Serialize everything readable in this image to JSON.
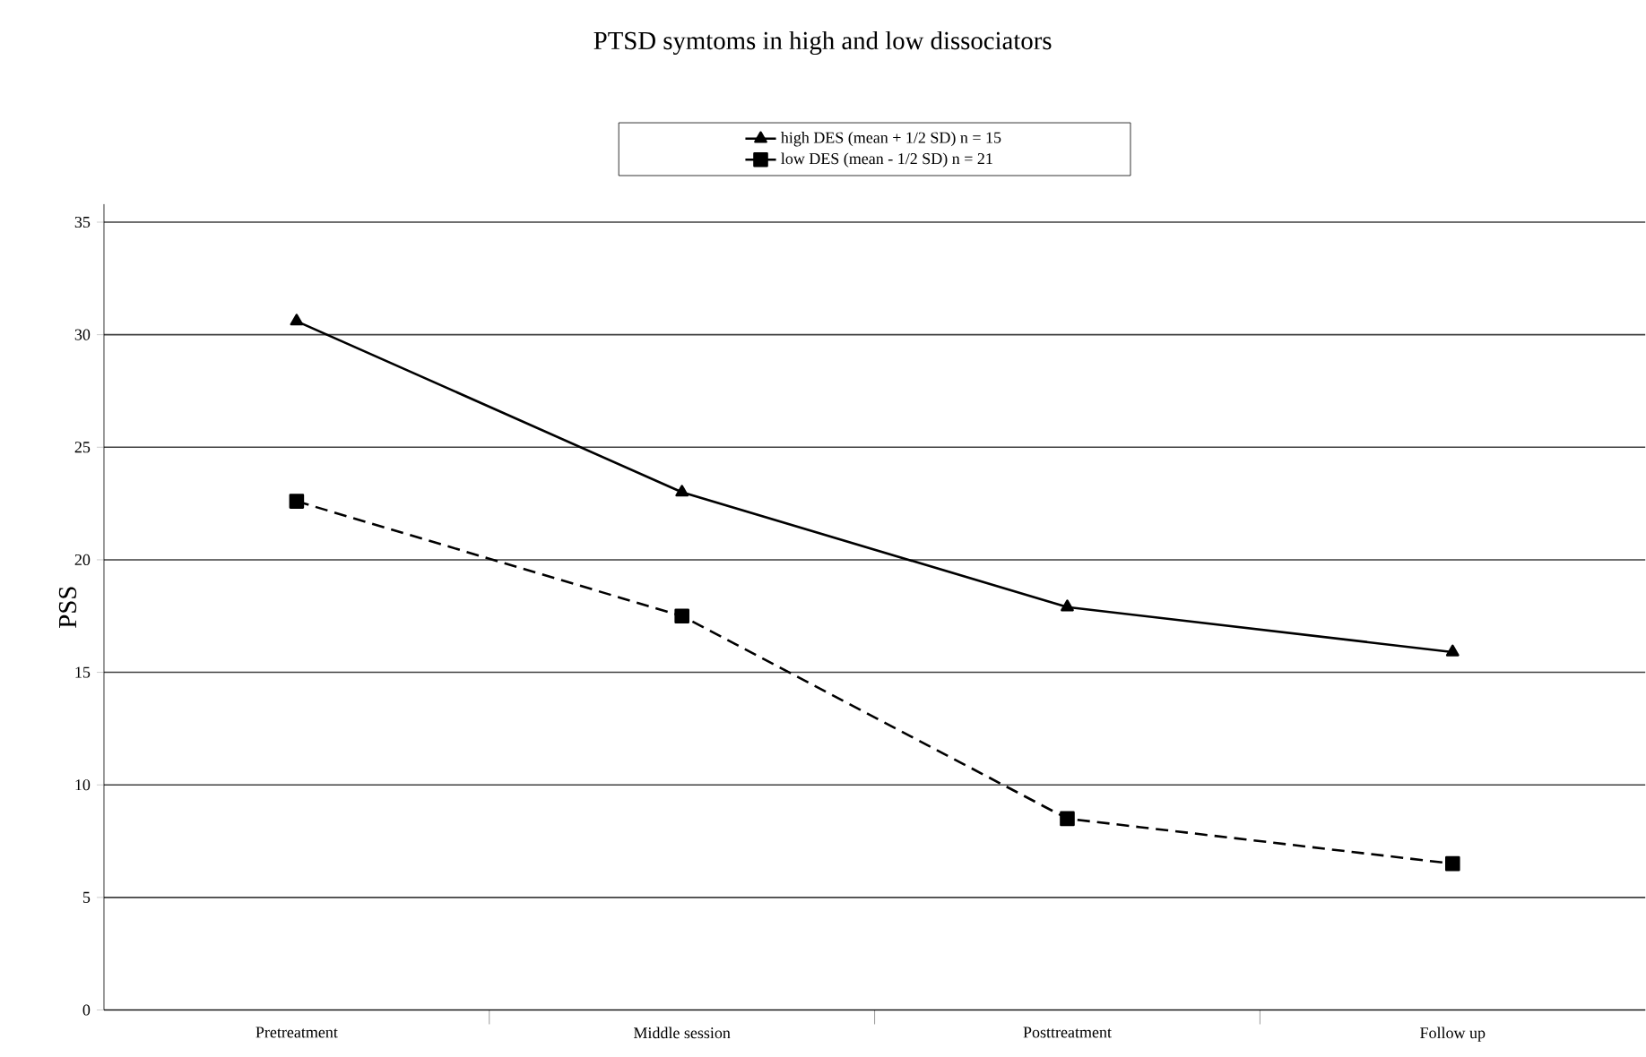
{
  "chart_data": {
    "type": "line",
    "title": "PTSD symtoms in high and low dissociators",
    "ylabel": "PSS",
    "categories": [
      "Pretreatment",
      "Middle session",
      "Posttreatment",
      "Follow up"
    ],
    "series": [
      {
        "name": "high DES (mean + 1/2 SD) n = 15",
        "color": "#000000",
        "values": [
          30.6,
          23.0,
          17.9,
          15.9
        ],
        "marker": "triangle",
        "line_style": "solid"
      },
      {
        "name": "low DES (mean - 1/2 SD) n = 21",
        "color": "#000000",
        "values": [
          22.6,
          17.5,
          8.5,
          6.5
        ],
        "marker": "square",
        "line_style": "dashed"
      }
    ],
    "ylim": [
      0,
      35.8
    ],
    "yticks": [
      0,
      5,
      10,
      15,
      20,
      25,
      30,
      35
    ],
    "grid": "y",
    "legend": "top"
  }
}
